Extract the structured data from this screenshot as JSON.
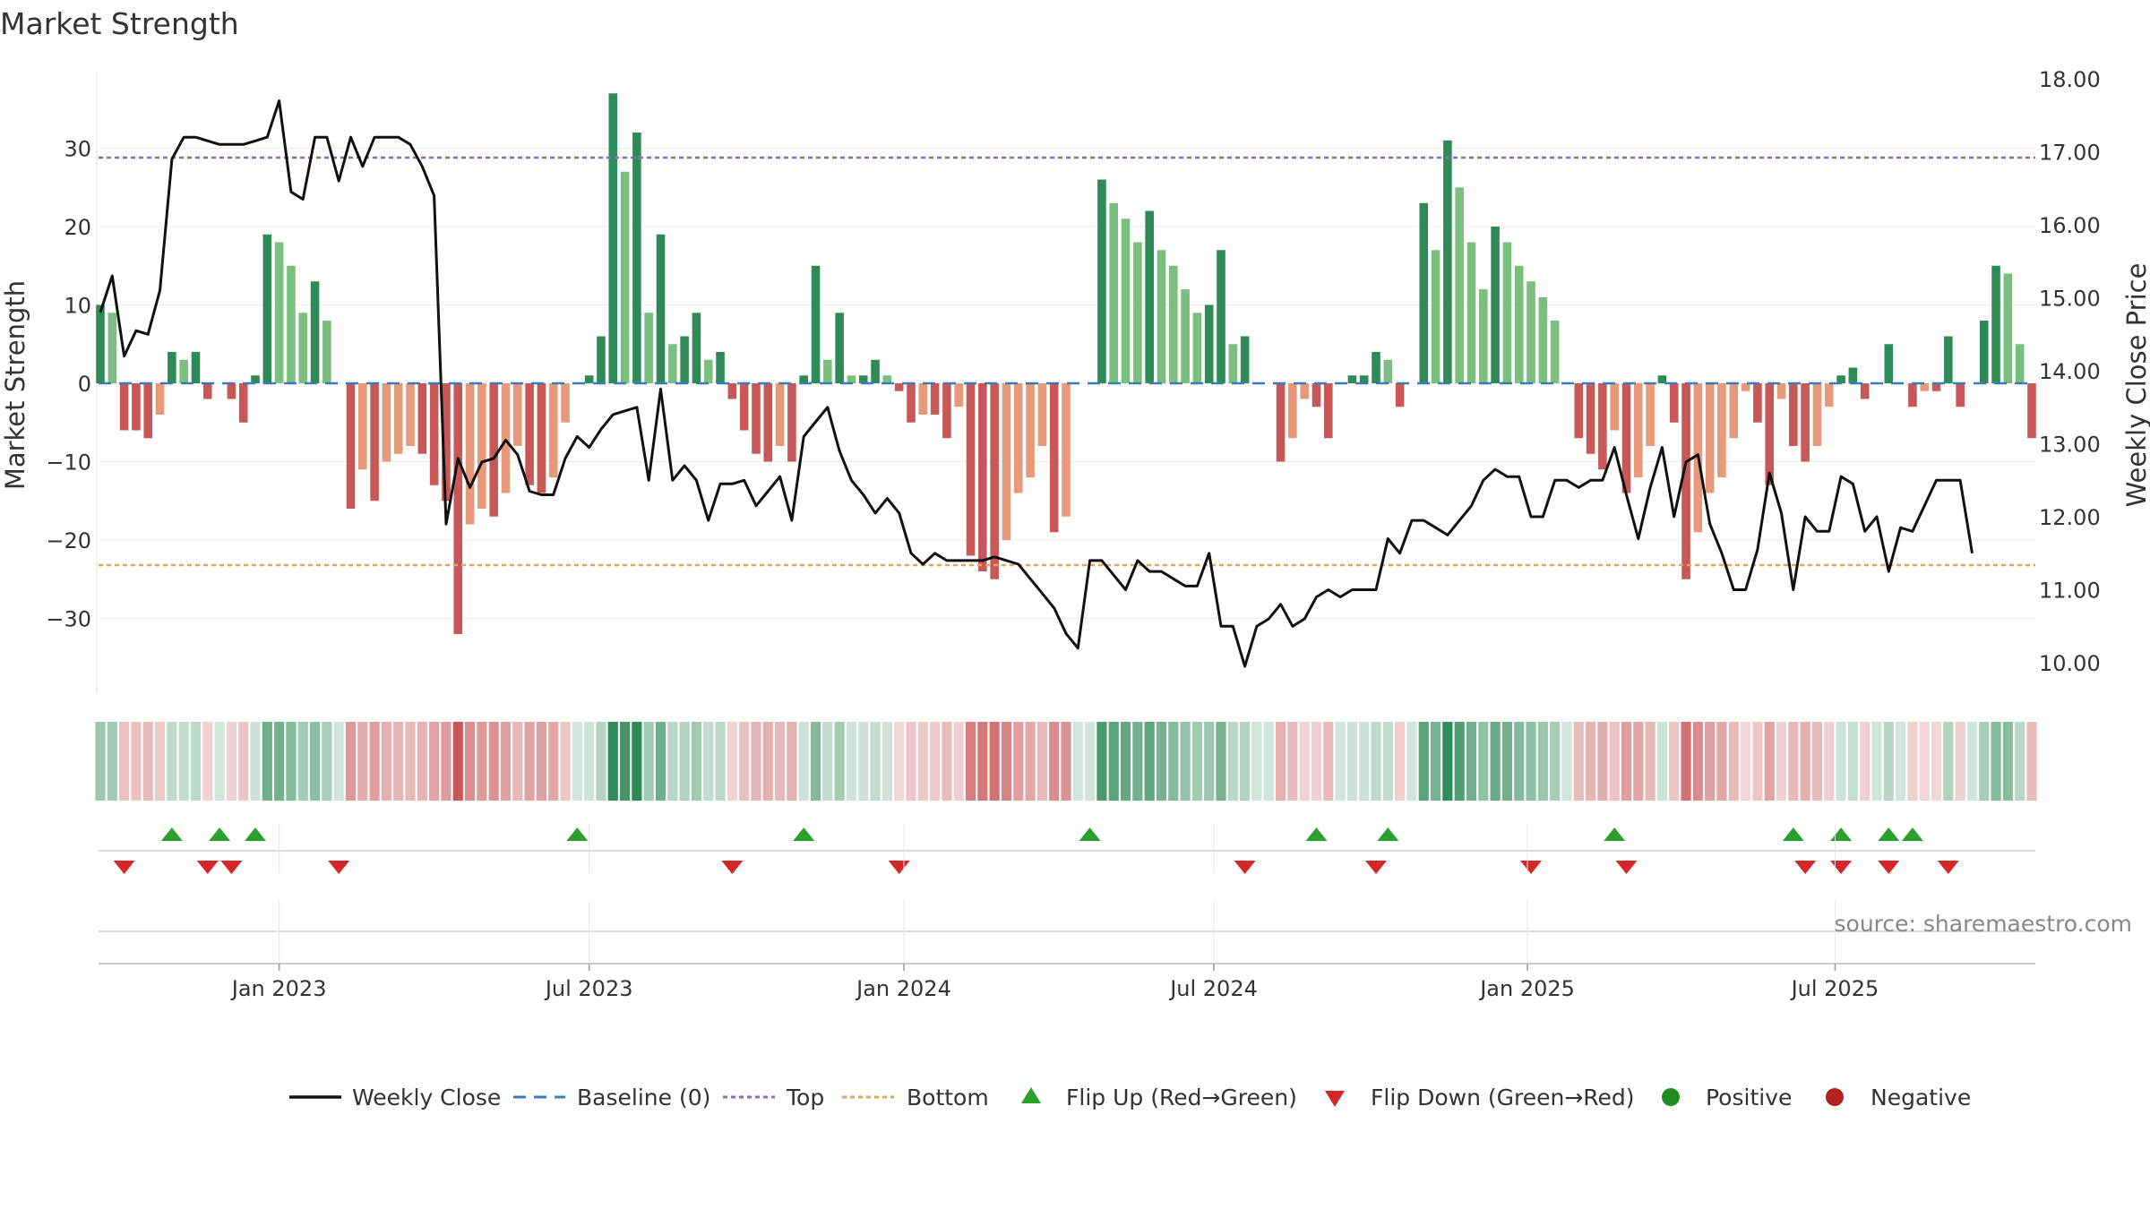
{
  "chart_data": {
    "type": "bar",
    "title": "Market Strength",
    "source": "source: sharemaestro.com",
    "ylabel": "Market Strength",
    "y2label": "Weekly Close Price",
    "ylim": [
      -40,
      40
    ],
    "y2lim": [
      9.6,
      18.2
    ],
    "y_ticks": [
      -30,
      -20,
      -10,
      0,
      10,
      20,
      30
    ],
    "y_tick_labels": [
      "−30",
      "−20",
      "−10",
      "0",
      "10",
      "20",
      "30"
    ],
    "y2_ticks": [
      "10.00",
      "11.00",
      "12.00",
      "13.00",
      "14.00",
      "15.00",
      "16.00",
      "17.00",
      "18.00"
    ],
    "x_ticks": [
      {
        "label": "Jan 2023",
        "week": 15
      },
      {
        "label": "Jul 2023",
        "week": 41
      },
      {
        "label": "Jan 2024",
        "week": 67.4
      },
      {
        "label": "Jul 2024",
        "week": 93.4
      },
      {
        "label": "Jan 2025",
        "week": 119.7
      },
      {
        "label": "Jul 2025",
        "week": 145.5
      }
    ],
    "top": 28.8,
    "bottom": -23.2,
    "baseline": 0,
    "strength": [
      10,
      9,
      -6,
      -6,
      -7,
      -4,
      4,
      3,
      4,
      -2,
      0,
      -2,
      -5,
      1,
      19,
      18,
      15,
      9,
      13,
      8,
      0,
      -16,
      -11,
      -15,
      -10,
      -9,
      -8,
      -9,
      -13,
      -15,
      -32,
      -18,
      -16,
      -17,
      -14,
      -8,
      -13,
      -14,
      -12,
      -5,
      0,
      1,
      6,
      37,
      27,
      32,
      9,
      19,
      5,
      6,
      9,
      3,
      4,
      -2,
      -6,
      -9,
      -10,
      -8,
      -10,
      1,
      15,
      3,
      9,
      1,
      1,
      3,
      1,
      -1,
      -5,
      -4,
      -4,
      -7,
      -3,
      -22,
      -24,
      -25,
      -20,
      -14,
      -12,
      -8,
      -19,
      -17,
      0,
      0,
      26,
      23,
      21,
      18,
      22,
      17,
      15,
      12,
      9,
      10,
      17,
      5,
      6,
      0,
      0,
      -10,
      -7,
      -2,
      -3,
      -7,
      0,
      1,
      1,
      4,
      3,
      -3,
      0,
      23,
      17,
      31,
      25,
      18,
      12,
      20,
      18,
      15,
      13,
      11,
      8,
      0,
      -7,
      -9,
      -11,
      -6,
      -14,
      -12,
      -8,
      1,
      -5,
      -25,
      -19,
      -14,
      -12,
      -7,
      -1,
      -5,
      -13,
      -2,
      -8,
      -10,
      -8,
      -3,
      1,
      2,
      -2,
      0,
      5,
      0,
      -3,
      -1,
      -1,
      6,
      -3,
      0,
      8,
      15,
      14,
      5,
      -7
    ],
    "close": [
      14.8,
      15.3,
      14.2,
      14.55,
      14.5,
      15.1,
      16.9,
      17.2,
      17.2,
      17.15,
      17.1,
      17.1,
      17.1,
      17.15,
      17.2,
      17.7,
      16.45,
      16.35,
      17.2,
      17.2,
      16.6,
      17.2,
      16.8,
      17.2,
      17.2,
      17.2,
      17.1,
      16.8,
      16.4,
      11.9,
      12.8,
      12.4,
      12.75,
      12.8,
      13.05,
      12.85,
      12.35,
      12.3,
      12.3,
      12.8,
      13.1,
      12.95,
      13.2,
      13.4,
      13.45,
      13.5,
      12.5,
      13.75,
      12.5,
      12.7,
      12.5,
      11.95,
      12.45,
      12.45,
      12.5,
      12.15,
      12.35,
      12.55,
      11.95,
      13.1,
      13.3,
      13.5,
      12.9,
      12.5,
      12.3,
      12.05,
      12.25,
      12.05,
      11.5,
      11.35,
      11.5,
      11.4,
      11.4,
      11.4,
      11.4,
      11.45,
      11.4,
      11.35,
      11.15,
      10.95,
      10.75,
      10.4,
      10.2,
      11.4,
      11.4,
      11.2,
      11.0,
      11.4,
      11.25,
      11.25,
      11.15,
      11.05,
      11.05,
      11.5,
      10.5,
      10.5,
      9.95,
      10.5,
      10.6,
      10.8,
      10.5,
      10.6,
      10.9,
      11.0,
      10.9,
      11.0,
      11.0,
      11.0,
      11.7,
      11.5,
      11.95,
      11.95,
      11.85,
      11.75,
      11.95,
      12.15,
      12.5,
      12.65,
      12.55,
      12.55,
      12.0,
      12.0,
      12.5,
      12.5,
      12.4,
      12.5,
      12.5,
      12.95,
      12.3,
      11.7,
      12.4,
      12.95,
      12.0,
      12.75,
      12.85,
      11.9,
      11.5,
      11.0,
      11.0,
      11.55,
      12.6,
      12.05,
      11.0,
      12.0,
      11.8,
      11.8,
      12.55,
      12.45,
      11.8,
      12.0,
      11.25,
      11.85,
      11.8,
      12.15,
      12.5,
      12.5,
      12.5,
      11.5
    ],
    "flip_up_weeks": [
      6,
      10,
      13,
      40,
      59,
      83,
      102,
      108,
      127,
      142,
      146,
      150,
      152
    ],
    "flip_down_weeks": [
      2,
      9,
      11,
      20,
      53,
      67,
      96,
      107,
      120,
      128,
      143,
      146,
      150,
      155
    ],
    "series": [
      {
        "name": "Weekly Close"
      },
      {
        "name": "Baseline (0)"
      },
      {
        "name": "Top"
      },
      {
        "name": "Bottom"
      },
      {
        "name": "Flip Up (Red→Green)"
      },
      {
        "name": "Flip Down (Green→Red)"
      },
      {
        "name": "Positive"
      },
      {
        "name": "Negative"
      }
    ],
    "colors": {
      "pos_strong": "#2e8b57",
      "pos_weak": "#7bbf7f",
      "neg_strong": "#c85858",
      "neg_weak": "#e8997a",
      "close_line": "#111111",
      "baseline": "#3a7bb8",
      "top": "#9467bd",
      "bottom": "#e8a45c",
      "flip_up": "#2ca02c",
      "flip_down": "#d62728",
      "positive": "#228b22",
      "negative": "#b22222"
    }
  }
}
